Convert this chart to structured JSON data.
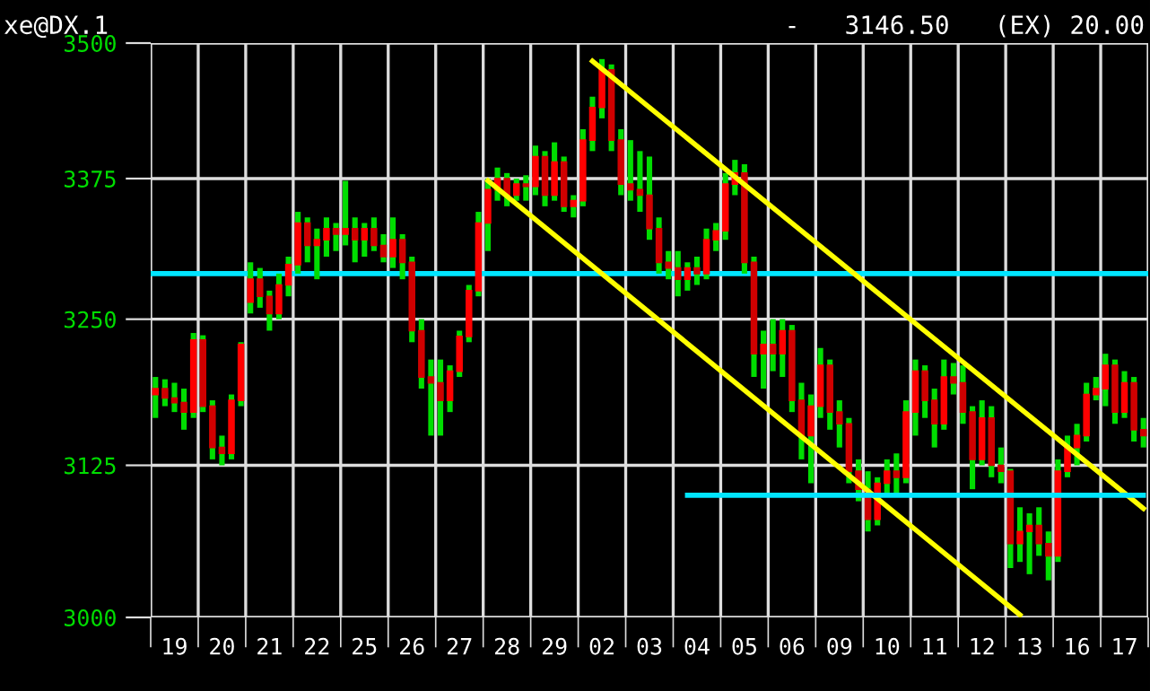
{
  "chart_data": {
    "type": "candlestick",
    "title": "xe@DX.1",
    "subtitle": "-   3146.50   (EX) 20.00",
    "log": "y",
    "grid": true,
    "categories": [
      null,
      null,
      "19",
      null,
      null,
      null,
      null,
      "20",
      null,
      null,
      null,
      null,
      "21",
      null,
      null,
      null,
      null,
      "22",
      null,
      null,
      null,
      null,
      "25",
      null,
      null,
      null,
      null,
      "26",
      null,
      null,
      null,
      null,
      "27",
      null,
      null,
      null,
      null,
      "28",
      null,
      null,
      null,
      null,
      "29",
      null,
      null,
      null,
      null,
      "02",
      null,
      null,
      null,
      null,
      "03",
      null,
      null,
      null,
      null,
      "04",
      null,
      null,
      null,
      null,
      "05",
      null,
      null,
      null,
      null,
      "06",
      null,
      null,
      null,
      null,
      "09",
      null,
      null,
      null,
      null,
      "10",
      null,
      null,
      null,
      null,
      "11",
      null,
      null,
      null,
      null,
      "12",
      null,
      null,
      null,
      null,
      "13",
      null,
      null,
      null,
      null,
      "16",
      null,
      null,
      null,
      null,
      "17",
      null,
      null
    ],
    "ohlc": [
      [
        3185,
        3200,
        3165,
        3190
      ],
      [
        3190,
        3198,
        3175,
        3182
      ],
      [
        3182,
        3195,
        3170,
        3178
      ],
      [
        3178,
        3190,
        3155,
        3170
      ],
      [
        3170,
        3238,
        3165,
        3232
      ],
      [
        3232,
        3236,
        3170,
        3175
      ],
      [
        3175,
        3180,
        3130,
        3140
      ],
      [
        3140,
        3150,
        3125,
        3135
      ],
      [
        3135,
        3185,
        3130,
        3180
      ],
      [
        3180,
        3230,
        3175,
        3228
      ],
      [
        3265,
        3300,
        3255,
        3285
      ],
      [
        3285,
        3295,
        3260,
        3270
      ],
      [
        3270,
        3275,
        3240,
        3255
      ],
      [
        3255,
        3290,
        3250,
        3280
      ],
      [
        3280,
        3305,
        3270,
        3298
      ],
      [
        3298,
        3345,
        3290,
        3335
      ],
      [
        3335,
        3340,
        3300,
        3315
      ],
      [
        3315,
        3330,
        3285,
        3320
      ],
      [
        3320,
        3340,
        3305,
        3330
      ],
      [
        3330,
        3335,
        3310,
        3325
      ],
      [
        3325,
        3373,
        3315,
        3330
      ],
      [
        3330,
        3340,
        3300,
        3320
      ],
      [
        3320,
        3335,
        3305,
        3330
      ],
      [
        3330,
        3340,
        3310,
        3315
      ],
      [
        3315,
        3325,
        3300,
        3305
      ],
      [
        3305,
        3340,
        3295,
        3320
      ],
      [
        3320,
        3325,
        3285,
        3300
      ],
      [
        3300,
        3305,
        3230,
        3240
      ],
      [
        3240,
        3250,
        3190,
        3200
      ],
      [
        3200,
        3215,
        3150,
        3195
      ],
      [
        3195,
        3215,
        3150,
        3180
      ],
      [
        3180,
        3210,
        3170,
        3205
      ],
      [
        3205,
        3240,
        3200,
        3235
      ],
      [
        3235,
        3280,
        3230,
        3275
      ],
      [
        3275,
        3345,
        3270,
        3335
      ],
      [
        3335,
        3375,
        3310,
        3365
      ],
      [
        3365,
        3385,
        3355,
        3375
      ],
      [
        3375,
        3380,
        3350,
        3360
      ],
      [
        3360,
        3375,
        3355,
        3370
      ],
      [
        3370,
        3378,
        3355,
        3368
      ],
      [
        3368,
        3405,
        3360,
        3395
      ],
      [
        3395,
        3400,
        3350,
        3360
      ],
      [
        3360,
        3408,
        3355,
        3390
      ],
      [
        3390,
        3395,
        3345,
        3350
      ],
      [
        3350,
        3360,
        3340,
        3355
      ],
      [
        3355,
        3420,
        3350,
        3410
      ],
      [
        3410,
        3450,
        3400,
        3440
      ],
      [
        3440,
        3485,
        3430,
        3475
      ],
      [
        3475,
        3480,
        3400,
        3410
      ],
      [
        3410,
        3420,
        3360,
        3370
      ],
      [
        3370,
        3410,
        3355,
        3365
      ],
      [
        3365,
        3400,
        3345,
        3360
      ],
      [
        3360,
        3395,
        3320,
        3330
      ],
      [
        3330,
        3340,
        3290,
        3300
      ],
      [
        3300,
        3310,
        3285,
        3295
      ],
      [
        3295,
        3310,
        3270,
        3285
      ],
      [
        3285,
        3300,
        3275,
        3295
      ],
      [
        3295,
        3305,
        3280,
        3290
      ],
      [
        3290,
        3330,
        3285,
        3320
      ],
      [
        3320,
        3335,
        3310,
        3328
      ],
      [
        3328,
        3380,
        3320,
        3370
      ],
      [
        3370,
        3392,
        3360,
        3380
      ],
      [
        3380,
        3388,
        3290,
        3300
      ],
      [
        3300,
        3305,
        3200,
        3220
      ],
      [
        3220,
        3240,
        3190,
        3228
      ],
      [
        3228,
        3250,
        3205,
        3220
      ],
      [
        3220,
        3250,
        3200,
        3240
      ],
      [
        3240,
        3245,
        3170,
        3180
      ],
      [
        3180,
        3195,
        3130,
        3150
      ],
      [
        3150,
        3185,
        3110,
        3175
      ],
      [
        3175,
        3225,
        3165,
        3210
      ],
      [
        3210,
        3215,
        3155,
        3170
      ],
      [
        3170,
        3180,
        3140,
        3160
      ],
      [
        3160,
        3165,
        3110,
        3120
      ],
      [
        3120,
        3130,
        3095,
        3105
      ],
      [
        3105,
        3120,
        3070,
        3080
      ],
      [
        3080,
        3115,
        3075,
        3110
      ],
      [
        3110,
        3130,
        3100,
        3120
      ],
      [
        3120,
        3135,
        3100,
        3115
      ],
      [
        3115,
        3180,
        3110,
        3170
      ],
      [
        3170,
        3215,
        3150,
        3205
      ],
      [
        3205,
        3210,
        3165,
        3180
      ],
      [
        3180,
        3190,
        3140,
        3160
      ],
      [
        3160,
        3215,
        3155,
        3200
      ],
      [
        3200,
        3212,
        3185,
        3195
      ],
      [
        3195,
        3210,
        3160,
        3170
      ],
      [
        3170,
        3175,
        3105,
        3130
      ],
      [
        3130,
        3180,
        3125,
        3165
      ],
      [
        3165,
        3175,
        3115,
        3125
      ],
      [
        3125,
        3140,
        3110,
        3120
      ],
      [
        3120,
        3122,
        3040,
        3060
      ],
      [
        3060,
        3090,
        3045,
        3070
      ],
      [
        3070,
        3085,
        3035,
        3075
      ],
      [
        3075,
        3090,
        3050,
        3060
      ],
      [
        3060,
        3070,
        3030,
        3050
      ],
      [
        3050,
        3130,
        3045,
        3120
      ],
      [
        3120,
        3150,
        3115,
        3140
      ],
      [
        3140,
        3160,
        3125,
        3150
      ],
      [
        3150,
        3195,
        3145,
        3185
      ],
      [
        3185,
        3200,
        3180,
        3190
      ],
      [
        3190,
        3220,
        3175,
        3210
      ],
      [
        3210,
        3215,
        3160,
        3170
      ],
      [
        3170,
        3205,
        3165,
        3195
      ],
      [
        3195,
        3200,
        3145,
        3155
      ],
      [
        3155,
        3165,
        3140,
        3150
      ]
    ],
    "series": [
      {
        "type": "line",
        "color": "#ffff00",
        "values": [
          null,
          null,
          null,
          null,
          null,
          null,
          null,
          null,
          null,
          null,
          null,
          null,
          null,
          null,
          null,
          null,
          null,
          null,
          null,
          null,
          null,
          null,
          null,
          null,
          null,
          null,
          null,
          null,
          null,
          null,
          null,
          null,
          null,
          null,
          null,
          null,
          null,
          null,
          null,
          null,
          null,
          null,
          null,
          null,
          null,
          null,
          3483,
          null,
          null,
          null,
          null,
          null,
          null,
          null,
          null,
          null,
          null,
          null,
          null,
          null,
          null,
          null,
          null,
          null,
          null,
          null,
          null,
          null,
          null,
          null,
          null,
          null,
          null,
          null,
          null,
          null,
          null,
          null,
          null,
          null,
          null,
          null,
          null,
          null,
          null,
          null,
          null,
          null,
          null,
          null,
          null,
          null,
          null,
          null,
          null,
          null,
          null,
          null,
          null,
          null,
          null,
          null,
          null,
          null,
          3089
        ]
      },
      {
        "type": "line",
        "color": "#ffff00",
        "values": [
          null,
          null,
          null,
          null,
          null,
          null,
          null,
          null,
          null,
          null,
          null,
          null,
          null,
          null,
          null,
          null,
          null,
          null,
          null,
          null,
          null,
          null,
          null,
          null,
          null,
          null,
          null,
          null,
          null,
          null,
          null,
          null,
          null,
          null,
          null,
          3373,
          null,
          null,
          null,
          null,
          null,
          null,
          null,
          null,
          null,
          null,
          null,
          null,
          null,
          null,
          null,
          null,
          null,
          null,
          null,
          null,
          null,
          null,
          null,
          null,
          null,
          null,
          null,
          null,
          null,
          null,
          null,
          null,
          null,
          null,
          null,
          null,
          null,
          null,
          null,
          null,
          null,
          null,
          null,
          null,
          null,
          null,
          null,
          null,
          null,
          null,
          null,
          null,
          null,
          null,
          null,
          3002,
          null,
          null,
          null,
          null,
          null,
          null,
          null,
          null,
          null,
          null,
          null,
          null,
          null
        ]
      },
      {
        "type": "line",
        "color": "#00e5ff",
        "values": [
          null,
          null,
          null,
          null,
          null,
          null,
          null,
          null,
          null,
          null,
          null,
          null,
          null,
          null,
          null,
          null,
          null,
          null,
          null,
          null,
          null,
          null,
          null,
          null,
          null,
          null,
          null,
          null,
          null,
          null,
          null,
          null,
          null,
          null,
          null,
          null,
          null,
          null,
          null,
          null,
          null,
          null,
          null,
          null,
          null,
          null,
          null,
          null,
          null,
          null,
          null,
          null,
          null,
          null,
          null,
          null,
          3100,
          null,
          null,
          null,
          null,
          null,
          null,
          null,
          null,
          null,
          null,
          null,
          null,
          null,
          null,
          null,
          null,
          null,
          null,
          null,
          null,
          null,
          null,
          null,
          null,
          null,
          null,
          null,
          null,
          null,
          null,
          null,
          null,
          null,
          null,
          null,
          null,
          null,
          null,
          null,
          null,
          null,
          null,
          null,
          null,
          null,
          null,
          null,
          3100
        ]
      }
    ],
    "ref_lines": [
      {
        "axis": "y",
        "value": 3290,
        "color": "#00e5ff"
      }
    ],
    "ylim": [
      3000,
      3500
    ],
    "yticks": [
      3000,
      3125,
      3250,
      3375,
      3500
    ]
  }
}
